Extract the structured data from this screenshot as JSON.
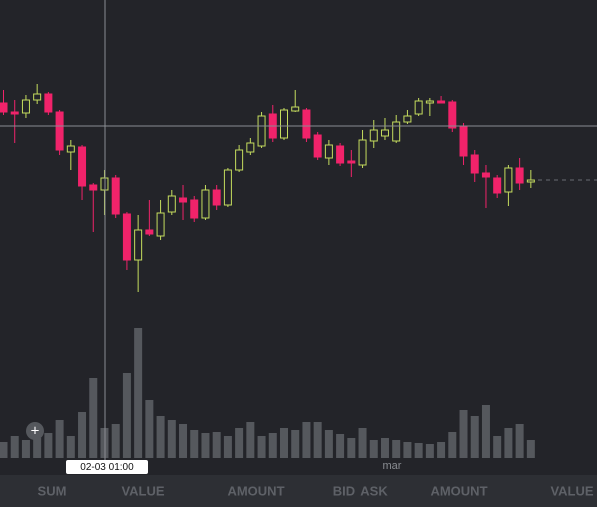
{
  "chart_data": {
    "type": "candlestick",
    "up_color": "#c5dd5e",
    "down_color": "#f0236a",
    "volume_color": "#55585d",
    "ylim": [
      0,
      320
    ],
    "volume_ylim": [
      0,
      140
    ],
    "crosshair_label": "02-03 01:00",
    "x_label": "mar",
    "open": [
      217,
      208,
      207,
      220,
      226,
      208,
      168,
      173,
      135,
      130,
      142,
      106,
      60,
      90,
      84,
      108,
      122,
      120,
      102,
      130,
      115,
      150,
      168,
      174,
      206,
      182,
      209,
      210,
      185,
      162,
      174,
      159,
      155,
      179,
      184,
      179,
      198,
      206,
      217,
      219,
      218,
      194,
      165,
      147,
      142,
      128,
      152,
      138
    ],
    "close": [
      208,
      206,
      220,
      226,
      208,
      170,
      174,
      134,
      130,
      142,
      106,
      60,
      90,
      86,
      107,
      124,
      118,
      102,
      130,
      115,
      150,
      170,
      177,
      204,
      182,
      210,
      213,
      182,
      163,
      175,
      157,
      157,
      180,
      190,
      190,
      198,
      204,
      219,
      219,
      217,
      192,
      164,
      147,
      143,
      127,
      152,
      137,
      140
    ],
    "high": [
      230,
      220,
      225,
      236,
      228,
      210,
      180,
      175,
      137,
      150,
      145,
      108,
      105,
      120,
      120,
      130,
      135,
      124,
      135,
      135,
      152,
      175,
      182,
      208,
      215,
      212,
      230,
      212,
      188,
      180,
      177,
      170,
      190,
      200,
      202,
      205,
      210,
      222,
      222,
      224,
      220,
      197,
      170,
      155,
      145,
      155,
      162,
      150
    ],
    "low": [
      205,
      177,
      202,
      216,
      205,
      165,
      150,
      120,
      88,
      105,
      102,
      50,
      28,
      84,
      80,
      105,
      100,
      98,
      100,
      110,
      113,
      148,
      165,
      172,
      178,
      180,
      208,
      178,
      160,
      155,
      154,
      143,
      152,
      172,
      180,
      177,
      196,
      204,
      204,
      217,
      188,
      155,
      138,
      112,
      122,
      114,
      130,
      132
    ],
    "volume": [
      16,
      22,
      18,
      20,
      25,
      38,
      22,
      46,
      80,
      30,
      34,
      85,
      130,
      58,
      42,
      38,
      34,
      28,
      25,
      26,
      22,
      30,
      36,
      22,
      25,
      30,
      28,
      36,
      36,
      28,
      24,
      20,
      30,
      18,
      20,
      18,
      16,
      15,
      14,
      16,
      26,
      48,
      42,
      53,
      22,
      30,
      34,
      18
    ]
  },
  "button": "+",
  "toolbar": [
    "SUM",
    "VALUE",
    "AMOUNT",
    "BID",
    "ASK",
    "AMOUNT",
    "VALUE"
  ]
}
